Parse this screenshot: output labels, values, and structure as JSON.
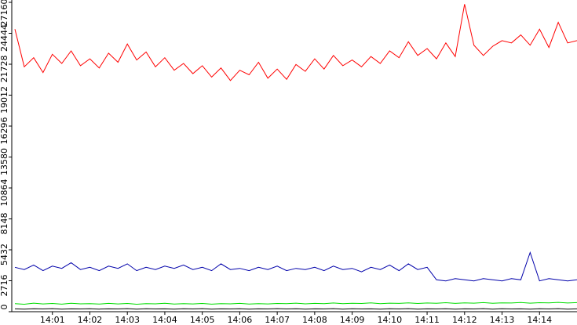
{
  "chart_data": {
    "type": "line",
    "x": [
      840,
      840.25,
      840.5,
      840.75,
      841,
      841.25,
      841.5,
      841.75,
      842,
      842.25,
      842.5,
      842.75,
      843,
      843.25,
      843.5,
      843.75,
      844,
      844.25,
      844.5,
      844.75,
      845,
      845.25,
      845.5,
      845.75,
      846,
      846.25,
      846.5,
      846.75,
      847,
      847.25,
      847.5,
      847.75,
      848,
      848.25,
      848.5,
      848.75,
      849,
      849.25,
      849.5,
      849.75,
      850,
      850.25,
      850.5,
      850.75,
      851,
      851.25,
      851.5,
      851.75,
      852,
      852.25,
      852.5,
      852.75,
      853,
      853.25,
      853.5,
      853.75,
      854,
      854.25,
      854.5,
      854.75,
      855
    ],
    "series": [
      {
        "color": "#ff0000",
        "values": [
          24800,
          21500,
          22300,
          21000,
          22600,
          21800,
          22900,
          21600,
          22200,
          21400,
          22700,
          21900,
          23500,
          22100,
          22800,
          21500,
          22300,
          21200,
          21800,
          20900,
          21600,
          20600,
          21400,
          20300,
          21200,
          20800,
          21900,
          20500,
          21300,
          20400,
          21700,
          21100,
          22200,
          21300,
          22500,
          21600,
          22100,
          21500,
          22400,
          21800,
          22900,
          22300,
          23700,
          22500,
          23100,
          22200,
          23600,
          22400,
          27000,
          23400,
          22500,
          23300,
          23800,
          23600,
          24300,
          23400,
          24800,
          23200,
          25400,
          23600,
          23800
        ]
      },
      {
        "color": "#0000aa",
        "values": [
          3900,
          3700,
          4100,
          3600,
          4000,
          3800,
          4300,
          3700,
          3900,
          3600,
          4000,
          3800,
          4200,
          3600,
          3900,
          3700,
          4000,
          3800,
          4100,
          3700,
          3900,
          3600,
          4200,
          3700,
          3800,
          3600,
          3900,
          3700,
          4000,
          3600,
          3800,
          3700,
          3900,
          3600,
          4000,
          3700,
          3800,
          3500,
          3900,
          3700,
          4100,
          3600,
          4200,
          3700,
          3900,
          2800,
          2700,
          2900,
          2800,
          2700,
          2900,
          2800,
          2700,
          2900,
          2800,
          5200,
          2700,
          2900,
          2800,
          2700,
          2800
        ]
      },
      {
        "color": "#00dd00",
        "values": [
          700,
          650,
          750,
          680,
          720,
          660,
          740,
          690,
          710,
          670,
          730,
          680,
          720,
          650,
          700,
          690,
          740,
          670,
          710,
          680,
          720,
          660,
          700,
          690,
          730,
          670,
          710,
          680,
          720,
          700,
          750,
          690,
          730,
          710,
          760,
          700,
          740,
          720,
          770,
          710,
          750,
          730,
          780,
          720,
          760,
          740,
          790,
          730,
          770,
          750,
          800,
          740,
          780,
          760,
          810,
          750,
          790,
          770,
          820,
          760,
          800
        ]
      },
      {
        "color": "#000000",
        "values": [
          250,
          230,
          260,
          240,
          270,
          230,
          250,
          240,
          260,
          230,
          250,
          240,
          270,
          230,
          260,
          240,
          250,
          230,
          260,
          240,
          270,
          230,
          250,
          240,
          260,
          230,
          250,
          240,
          270,
          240,
          260,
          230,
          250,
          240,
          270,
          230,
          260,
          240,
          250,
          230,
          260,
          240,
          270,
          230,
          250,
          240,
          260,
          230,
          250,
          240,
          270,
          230,
          260,
          240,
          250,
          230,
          260,
          240,
          270,
          230,
          250
        ]
      }
    ],
    "xlim": [
      840,
      855
    ],
    "xticks": [
      {
        "value": 841,
        "label": "14:01"
      },
      {
        "value": 842,
        "label": "14:02"
      },
      {
        "value": 843,
        "label": "14:03"
      },
      {
        "value": 844,
        "label": "14:04"
      },
      {
        "value": 845,
        "label": "14:05"
      },
      {
        "value": 846,
        "label": "14:06"
      },
      {
        "value": 847,
        "label": "14:07"
      },
      {
        "value": 848,
        "label": "14:08"
      },
      {
        "value": 849,
        "label": "14:09"
      },
      {
        "value": 850,
        "label": "14:10"
      },
      {
        "value": 851,
        "label": "14:11"
      },
      {
        "value": 852,
        "label": "14:12"
      },
      {
        "value": 853,
        "label": "14:13"
      },
      {
        "value": 854,
        "label": "14:14"
      }
    ],
    "ylim": [
      0,
      27160
    ],
    "yticks": [
      0,
      2716,
      5432,
      8148,
      10864,
      13580,
      16296,
      19012,
      21728,
      24444,
      27160
    ]
  }
}
